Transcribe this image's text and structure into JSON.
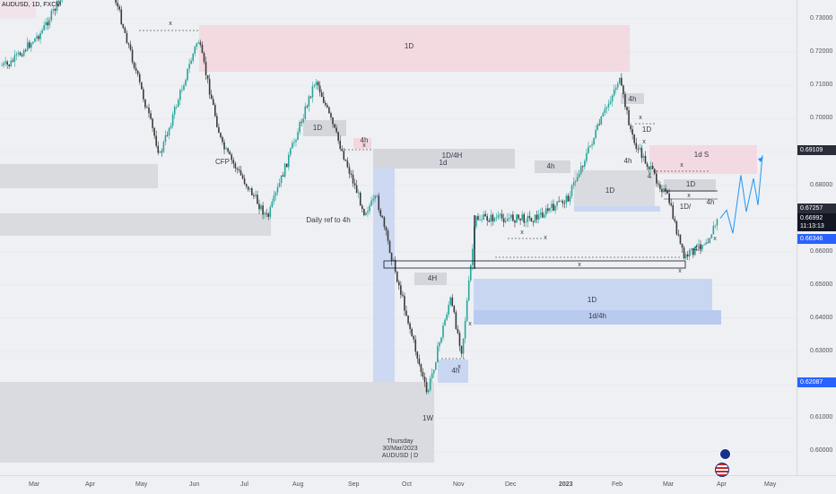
{
  "symbol": "AUDUSD, 1D, FXCM",
  "price_ticks": [
    "0.73000",
    "0.72000",
    "0.71000",
    "0.70000",
    "0.69000",
    "0.68000",
    "0.67000",
    "0.66000",
    "0.65000",
    "0.64000",
    "0.63000",
    "0.62000",
    "0.61000",
    "0.60000"
  ],
  "month_labels": [
    "Mar",
    "Apr",
    "May",
    "Jun",
    "Jul",
    "Aug",
    "Sep",
    "Oct",
    "Nov",
    "Dec",
    "2023",
    "Feb",
    "Mar",
    "Apr",
    "May"
  ],
  "price_tags": [
    {
      "text": "0.69109",
      "bg": "#2a2e39"
    },
    {
      "text": "0.67257",
      "bg": "#2a2e39"
    },
    {
      "text": "0.66992",
      "bg": "#131722"
    },
    {
      "text": "11:13:13",
      "bg": "#131722"
    },
    {
      "text": "0.66346",
      "bg": "#2962ff"
    },
    {
      "text": "0.62087",
      "bg": "#2962ff"
    }
  ],
  "zone_labels": [
    "1D",
    "1D/4H",
    "1d",
    "4h",
    "1D",
    "1d S",
    "1D",
    "1D/",
    "4h",
    "4h",
    "4h",
    "4H",
    "1D",
    "1d/4h",
    "4h",
    "1W",
    "Daily ref to 4h",
    "CFP",
    "1D",
    "4h",
    "1D",
    "4h",
    "4"
  ],
  "markers": [
    "x",
    "x",
    "x",
    "x",
    "x",
    "x",
    "x",
    "x",
    "x",
    "x",
    "x",
    "x",
    "x"
  ],
  "info_box": {
    "day": "Thursday",
    "date": "30/Mar/2023",
    "symbol": "AUDUSD | D"
  },
  "colors": {
    "bull": "#26a69a",
    "bear": "#3a3a3a",
    "pink_zone": "#f3d6de",
    "blue_zone": "#c9d6f2",
    "gray_zone": "#d9dbe0",
    "projection": "#2196f3"
  },
  "chart_data": {
    "type": "candlestick",
    "title": "AUDUSD, 1D, FXCM",
    "ylim": [
      0.595,
      0.7395
    ],
    "y_ticks": [
      0.73,
      0.72,
      0.71,
      0.7,
      0.69,
      0.68,
      0.67,
      0.66,
      0.65,
      0.64,
      0.63,
      0.62,
      0.61,
      0.6
    ],
    "x_labels": [
      "Mar",
      "Apr",
      "May",
      "Jun",
      "Jul",
      "Aug",
      "Sep",
      "Oct",
      "Nov",
      "Dec",
      "2023",
      "Feb",
      "Mar",
      "Apr",
      "May"
    ],
    "approx_close_path": [
      {
        "date": "2022-02-15",
        "close": 0.716
      },
      {
        "date": "2022-03-05",
        "close": 0.726
      },
      {
        "date": "2022-04-05",
        "close": 0.755
      },
      {
        "date": "2022-05-12",
        "close": 0.689
      },
      {
        "date": "2022-06-03",
        "close": 0.724
      },
      {
        "date": "2022-06-17",
        "close": 0.692
      },
      {
        "date": "2022-07-14",
        "close": 0.67
      },
      {
        "date": "2022-08-11",
        "close": 0.712
      },
      {
        "date": "2022-09-07",
        "close": 0.672
      },
      {
        "date": "2022-09-14",
        "close": 0.676
      },
      {
        "date": "2022-10-13",
        "close": 0.617
      },
      {
        "date": "2022-10-27",
        "close": 0.646
      },
      {
        "date": "2022-11-03",
        "close": 0.63
      },
      {
        "date": "2022-11-11",
        "close": 0.67
      },
      {
        "date": "2022-12-15",
        "close": 0.67
      },
      {
        "date": "2023-01-03",
        "close": 0.676
      },
      {
        "date": "2023-02-02",
        "close": 0.712
      },
      {
        "date": "2023-02-10",
        "close": 0.693
      },
      {
        "date": "2023-03-01",
        "close": 0.676
      },
      {
        "date": "2023-03-10",
        "close": 0.658
      },
      {
        "date": "2023-03-24",
        "close": 0.664
      },
      {
        "date": "2023-03-30",
        "close": 0.67
      }
    ],
    "projection_path": [
      0.67,
      0.6725,
      0.6655,
      0.683,
      0.672,
      0.682,
      0.674,
      0.689
    ]
  }
}
